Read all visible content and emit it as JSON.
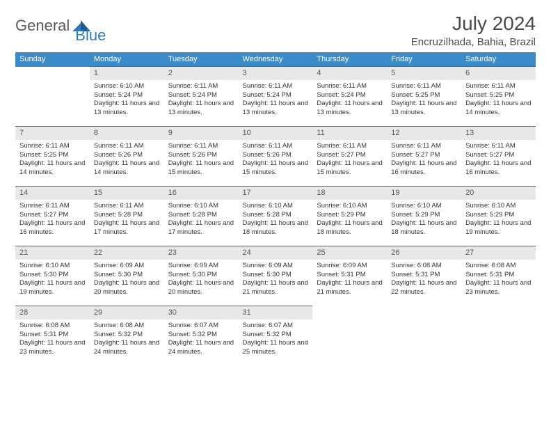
{
  "logo": {
    "text1": "General",
    "text2": "Blue"
  },
  "title": "July 2024",
  "location": "Encruzilhada, Bahia, Brazil",
  "colors": {
    "header_bg": "#3b8bc9",
    "header_text": "#ffffff",
    "daynum_bg": "#e8e8e8",
    "border": "#2c6ea8",
    "logo_gray": "#5a5a5a",
    "logo_blue": "#2c7bc0"
  },
  "weekdays": [
    "Sunday",
    "Monday",
    "Tuesday",
    "Wednesday",
    "Thursday",
    "Friday",
    "Saturday"
  ],
  "weeks": [
    [
      null,
      {
        "n": "1",
        "sr": "6:10 AM",
        "ss": "5:24 PM",
        "dl": "11 hours and 13 minutes."
      },
      {
        "n": "2",
        "sr": "6:11 AM",
        "ss": "5:24 PM",
        "dl": "11 hours and 13 minutes."
      },
      {
        "n": "3",
        "sr": "6:11 AM",
        "ss": "5:24 PM",
        "dl": "11 hours and 13 minutes."
      },
      {
        "n": "4",
        "sr": "6:11 AM",
        "ss": "5:24 PM",
        "dl": "11 hours and 13 minutes."
      },
      {
        "n": "5",
        "sr": "6:11 AM",
        "ss": "5:25 PM",
        "dl": "11 hours and 13 minutes."
      },
      {
        "n": "6",
        "sr": "6:11 AM",
        "ss": "5:25 PM",
        "dl": "11 hours and 14 minutes."
      }
    ],
    [
      {
        "n": "7",
        "sr": "6:11 AM",
        "ss": "5:25 PM",
        "dl": "11 hours and 14 minutes."
      },
      {
        "n": "8",
        "sr": "6:11 AM",
        "ss": "5:26 PM",
        "dl": "11 hours and 14 minutes."
      },
      {
        "n": "9",
        "sr": "6:11 AM",
        "ss": "5:26 PM",
        "dl": "11 hours and 15 minutes."
      },
      {
        "n": "10",
        "sr": "6:11 AM",
        "ss": "5:26 PM",
        "dl": "11 hours and 15 minutes."
      },
      {
        "n": "11",
        "sr": "6:11 AM",
        "ss": "5:27 PM",
        "dl": "11 hours and 15 minutes."
      },
      {
        "n": "12",
        "sr": "6:11 AM",
        "ss": "5:27 PM",
        "dl": "11 hours and 16 minutes."
      },
      {
        "n": "13",
        "sr": "6:11 AM",
        "ss": "5:27 PM",
        "dl": "11 hours and 16 minutes."
      }
    ],
    [
      {
        "n": "14",
        "sr": "6:11 AM",
        "ss": "5:27 PM",
        "dl": "11 hours and 16 minutes."
      },
      {
        "n": "15",
        "sr": "6:11 AM",
        "ss": "5:28 PM",
        "dl": "11 hours and 17 minutes."
      },
      {
        "n": "16",
        "sr": "6:10 AM",
        "ss": "5:28 PM",
        "dl": "11 hours and 17 minutes."
      },
      {
        "n": "17",
        "sr": "6:10 AM",
        "ss": "5:28 PM",
        "dl": "11 hours and 18 minutes."
      },
      {
        "n": "18",
        "sr": "6:10 AM",
        "ss": "5:29 PM",
        "dl": "11 hours and 18 minutes."
      },
      {
        "n": "19",
        "sr": "6:10 AM",
        "ss": "5:29 PM",
        "dl": "11 hours and 18 minutes."
      },
      {
        "n": "20",
        "sr": "6:10 AM",
        "ss": "5:29 PM",
        "dl": "11 hours and 19 minutes."
      }
    ],
    [
      {
        "n": "21",
        "sr": "6:10 AM",
        "ss": "5:30 PM",
        "dl": "11 hours and 19 minutes."
      },
      {
        "n": "22",
        "sr": "6:09 AM",
        "ss": "5:30 PM",
        "dl": "11 hours and 20 minutes."
      },
      {
        "n": "23",
        "sr": "6:09 AM",
        "ss": "5:30 PM",
        "dl": "11 hours and 20 minutes."
      },
      {
        "n": "24",
        "sr": "6:09 AM",
        "ss": "5:30 PM",
        "dl": "11 hours and 21 minutes."
      },
      {
        "n": "25",
        "sr": "6:09 AM",
        "ss": "5:31 PM",
        "dl": "11 hours and 21 minutes."
      },
      {
        "n": "26",
        "sr": "6:08 AM",
        "ss": "5:31 PM",
        "dl": "11 hours and 22 minutes."
      },
      {
        "n": "27",
        "sr": "6:08 AM",
        "ss": "5:31 PM",
        "dl": "11 hours and 23 minutes."
      }
    ],
    [
      {
        "n": "28",
        "sr": "6:08 AM",
        "ss": "5:31 PM",
        "dl": "11 hours and 23 minutes."
      },
      {
        "n": "29",
        "sr": "6:08 AM",
        "ss": "5:32 PM",
        "dl": "11 hours and 24 minutes."
      },
      {
        "n": "30",
        "sr": "6:07 AM",
        "ss": "5:32 PM",
        "dl": "11 hours and 24 minutes."
      },
      {
        "n": "31",
        "sr": "6:07 AM",
        "ss": "5:32 PM",
        "dl": "11 hours and 25 minutes."
      },
      null,
      null,
      null
    ]
  ],
  "labels": {
    "sunrise": "Sunrise:",
    "sunset": "Sunset:",
    "daylight": "Daylight:"
  }
}
